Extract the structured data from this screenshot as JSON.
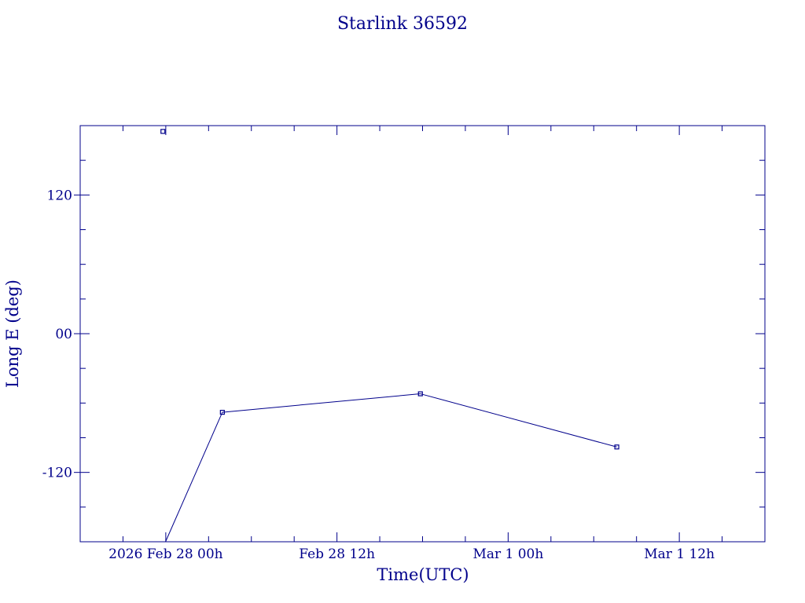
{
  "colors": {
    "ink": "#00008b",
    "background": "#ffffff"
  },
  "chart_data": {
    "type": "line",
    "title": "Starlink 36592",
    "xlabel": "Time(UTC)",
    "ylabel": "Long E (deg)",
    "x_axis_type": "time",
    "xlim": [
      "2026-02-27T18:00:00Z",
      "2026-03-01T18:00:00Z"
    ],
    "ylim": [
      -180,
      180
    ],
    "x_ticks": [
      {
        "label": "2026 Feb 28  00h",
        "value": "2026-02-28T00:00:00Z"
      },
      {
        "label": "Feb 28  12h",
        "value": "2026-02-28T12:00:00Z"
      },
      {
        "label": "Mar  1  00h",
        "value": "2026-03-01T00:00:00Z"
      },
      {
        "label": "Mar  1  12h",
        "value": "2026-03-01T12:00:00Z"
      }
    ],
    "y_ticks": [
      {
        "label": "120",
        "value": 120
      },
      {
        "label": "00",
        "value": 0
      },
      {
        "label": "-120",
        "value": -120
      }
    ],
    "grid": false,
    "series": [
      {
        "marker": "square",
        "points": [
          {
            "x": "2026-02-27T23:48:00Z",
            "y": 175
          },
          {
            "x": "2026-02-28T03:58:00Z",
            "y": -68
          },
          {
            "x": "2026-02-28T17:51:00Z",
            "y": -52
          },
          {
            "x": "2026-03-01T07:37:00Z",
            "y": -98
          }
        ]
      }
    ],
    "segments": [
      {
        "from": {
          "x": "2026-02-27T23:59:00Z",
          "y": -180
        },
        "to": {
          "x": "2026-02-28T03:58:00Z",
          "y": -68
        }
      },
      {
        "from": {
          "x": "2026-02-28T03:58:00Z",
          "y": -68
        },
        "to": {
          "x": "2026-02-28T17:51:00Z",
          "y": -52
        }
      },
      {
        "from": {
          "x": "2026-02-28T17:51:00Z",
          "y": -52
        },
        "to": {
          "x": "2026-03-01T07:37:00Z",
          "y": -98
        }
      }
    ]
  }
}
